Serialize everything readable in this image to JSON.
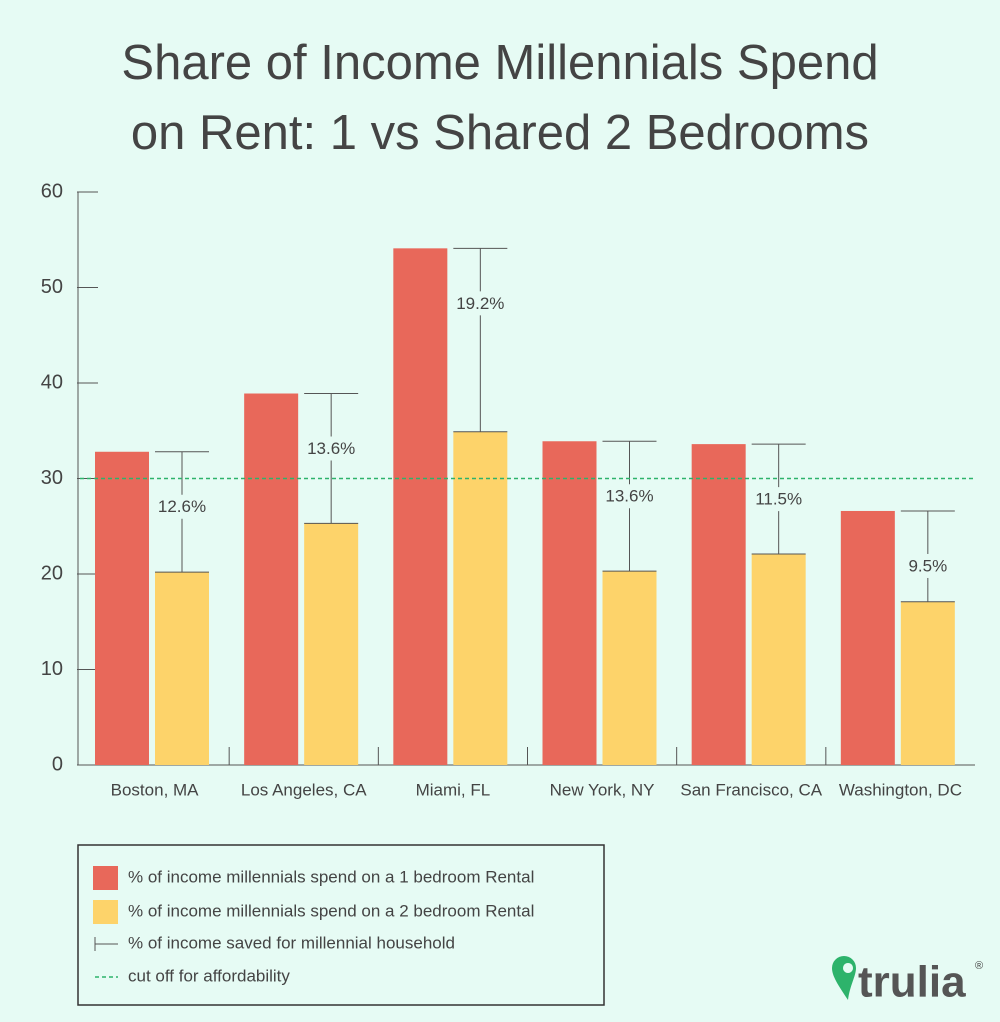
{
  "chart_data": {
    "type": "bar",
    "title": [
      "Share of Income Millennials Spend",
      "on Rent: 1 vs Shared 2 Bedrooms"
    ],
    "categories": [
      "Boston, MA",
      "Los Angeles, CA",
      "Miami, FL",
      "New York, NY",
      "San Francisco, CA",
      "Washington, DC"
    ],
    "series": [
      {
        "name": "% of income millennials spend on a 1 bedroom Rental",
        "color": "#e8685a",
        "values": [
          32.8,
          38.9,
          54.1,
          33.9,
          33.6,
          26.6
        ]
      },
      {
        "name": "% of income millennials spend on a 2 bedroom Rental",
        "color": "#fdd36a",
        "values": [
          20.2,
          25.3,
          34.9,
          20.3,
          22.1,
          17.1
        ]
      },
      {
        "name": "% of income saved for millennial household",
        "color": "#555555",
        "values": [
          12.6,
          13.6,
          19.2,
          13.6,
          11.5,
          9.5
        ],
        "value_labels": [
          "12.6%",
          "13.6%",
          "19.2%",
          "13.6%",
          "11.5%",
          "9.5%"
        ]
      }
    ],
    "reference_line": {
      "name": "cut off for affordability",
      "value": 30,
      "color": "#2db36b"
    },
    "ylim": [
      0,
      60
    ],
    "yticks": [
      0,
      10,
      20,
      30,
      40,
      50,
      60
    ],
    "brand": "trulia",
    "brand_mark": "®"
  }
}
